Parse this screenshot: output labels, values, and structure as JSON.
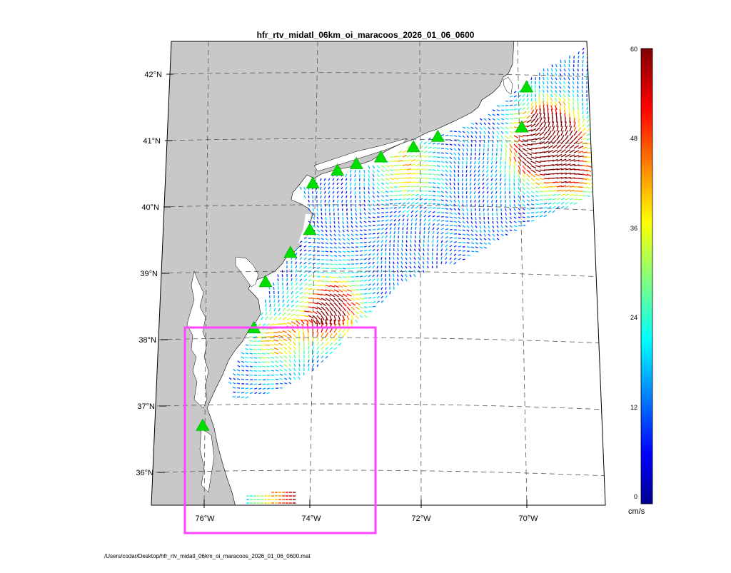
{
  "title": "hfr_rtv_midatl_06km_oi_maracoos_2026_01_06_0600",
  "footer_path": "/Users/codar/Desktop/hfr_rtv_midatl_06km_oi_maracoos_2026_01_06_0600.mat",
  "lat_labels": [
    "42°N",
    "41°N",
    "40°N",
    "39°N",
    "38°N",
    "37°N",
    "36°N"
  ],
  "lon_labels": [
    "76°W",
    "74°W",
    "72°W",
    "70°W"
  ],
  "colorbar": {
    "units": "cm/s",
    "ticks": [
      "60",
      "48",
      "36",
      "24",
      "12",
      "0"
    ],
    "colormap": "jet",
    "min": 0,
    "max": 60
  },
  "colors": {
    "land": "#c8c8c8",
    "water": "#ffffff",
    "station_marker": "#00e000",
    "highlight_box": "#ff44ff",
    "grid": "#555555"
  },
  "stations": [
    {
      "lat": 41.75,
      "lon": 70.05
    },
    {
      "lat": 41.15,
      "lon": 70.15
    },
    {
      "lat": 41.05,
      "lon": 71.7
    },
    {
      "lat": 40.9,
      "lon": 72.15
    },
    {
      "lat": 40.75,
      "lon": 72.75
    },
    {
      "lat": 40.65,
      "lon": 73.2
    },
    {
      "lat": 40.55,
      "lon": 73.55
    },
    {
      "lat": 40.35,
      "lon": 74.0
    },
    {
      "lat": 39.65,
      "lon": 74.05
    },
    {
      "lat": 39.3,
      "lon": 74.4
    },
    {
      "lat": 38.85,
      "lon": 74.85
    },
    {
      "lat": 38.15,
      "lon": 75.05
    },
    {
      "lat": 36.65,
      "lon": 75.95
    }
  ],
  "hotspots": [
    {
      "lat": 41.1,
      "lon": 69.6,
      "speed": 52
    },
    {
      "lat": 40.8,
      "lon": 69.9,
      "speed": 55
    },
    {
      "lat": 40.45,
      "lon": 69.3,
      "speed": 44
    },
    {
      "lat": 38.6,
      "lon": 73.6,
      "speed": 34
    },
    {
      "lat": 38.3,
      "lon": 73.8,
      "speed": 32
    },
    {
      "lat": 37.95,
      "lon": 74.6,
      "speed": 28
    },
    {
      "lat": 40.55,
      "lon": 72.3,
      "speed": 30
    },
    {
      "lat": 35.75,
      "lon": 74.5,
      "speed": 55
    }
  ]
}
